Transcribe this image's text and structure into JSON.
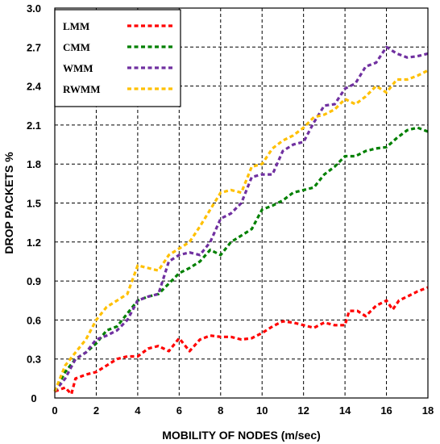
{
  "chart_data": {
    "type": "line",
    "xlabel": "MOBILITY OF NODES (m/sec)",
    "ylabel": "DROP PACKETS %",
    "xlim": [
      0,
      18
    ],
    "ylim": [
      0,
      3.0
    ],
    "x_ticks": [
      "0",
      "2",
      "4",
      "6",
      "8",
      "10",
      "12",
      "14",
      "16",
      "18"
    ],
    "y_ticks": [
      "0",
      "0.3",
      "0.6",
      "0.9",
      "1.2",
      "1.5",
      "1.8",
      "2.1",
      "2.4",
      "2.7",
      "3.0"
    ],
    "grid": true,
    "legend_position": "top-left",
    "series": [
      {
        "name": "LMM",
        "color": "#ff0000",
        "points": [
          [
            0,
            0.05
          ],
          [
            0.5,
            0.08
          ],
          [
            0.8,
            0.03
          ],
          [
            1,
            0.15
          ],
          [
            1.5,
            0.18
          ],
          [
            2,
            0.2
          ],
          [
            2.5,
            0.25
          ],
          [
            3,
            0.3
          ],
          [
            3.5,
            0.32
          ],
          [
            4,
            0.32
          ],
          [
            4.5,
            0.38
          ],
          [
            5,
            0.4
          ],
          [
            5.5,
            0.36
          ],
          [
            6,
            0.46
          ],
          [
            6.5,
            0.36
          ],
          [
            7,
            0.45
          ],
          [
            7.5,
            0.48
          ],
          [
            8,
            0.47
          ],
          [
            8.5,
            0.47
          ],
          [
            9,
            0.45
          ],
          [
            9.5,
            0.46
          ],
          [
            10,
            0.5
          ],
          [
            10.5,
            0.55
          ],
          [
            11,
            0.59
          ],
          [
            11.5,
            0.58
          ],
          [
            12,
            0.56
          ],
          [
            12.5,
            0.54
          ],
          [
            13,
            0.58
          ],
          [
            13.5,
            0.56
          ],
          [
            14,
            0.56
          ],
          [
            14.2,
            0.67
          ],
          [
            14.6,
            0.67
          ],
          [
            15,
            0.63
          ],
          [
            15.5,
            0.71
          ],
          [
            16,
            0.75
          ],
          [
            16.3,
            0.68
          ],
          [
            16.6,
            0.75
          ],
          [
            17,
            0.78
          ],
          [
            17.5,
            0.82
          ],
          [
            18,
            0.85
          ]
        ]
      },
      {
        "name": "CMM",
        "color": "#008000",
        "points": [
          [
            0,
            0.05
          ],
          [
            0.5,
            0.2
          ],
          [
            1,
            0.3
          ],
          [
            1.5,
            0.35
          ],
          [
            2,
            0.42
          ],
          [
            2.5,
            0.52
          ],
          [
            3,
            0.55
          ],
          [
            3.5,
            0.65
          ],
          [
            4,
            0.75
          ],
          [
            4.5,
            0.78
          ],
          [
            5,
            0.8
          ],
          [
            5.5,
            0.88
          ],
          [
            6,
            0.96
          ],
          [
            6.5,
            1.0
          ],
          [
            7,
            1.05
          ],
          [
            7.5,
            1.14
          ],
          [
            8,
            1.1
          ],
          [
            8.5,
            1.2
          ],
          [
            9,
            1.25
          ],
          [
            9.5,
            1.3
          ],
          [
            10,
            1.45
          ],
          [
            10.5,
            1.48
          ],
          [
            11,
            1.52
          ],
          [
            11.5,
            1.58
          ],
          [
            12,
            1.6
          ],
          [
            12.5,
            1.62
          ],
          [
            13,
            1.72
          ],
          [
            13.5,
            1.78
          ],
          [
            14,
            1.86
          ],
          [
            14.5,
            1.86
          ],
          [
            15,
            1.9
          ],
          [
            15.5,
            1.92
          ],
          [
            16,
            1.93
          ],
          [
            16.5,
            2.0
          ],
          [
            17,
            2.06
          ],
          [
            17.5,
            2.08
          ],
          [
            18,
            2.05
          ]
        ]
      },
      {
        "name": "WMM",
        "color": "#7030a0",
        "points": [
          [
            0,
            0.05
          ],
          [
            0.5,
            0.15
          ],
          [
            1,
            0.3
          ],
          [
            1.5,
            0.35
          ],
          [
            2,
            0.45
          ],
          [
            2.5,
            0.48
          ],
          [
            3,
            0.52
          ],
          [
            3.5,
            0.6
          ],
          [
            4,
            0.75
          ],
          [
            4.5,
            0.78
          ],
          [
            5,
            0.8
          ],
          [
            5.5,
            1.05
          ],
          [
            6,
            1.1
          ],
          [
            6.5,
            1.12
          ],
          [
            7,
            1.1
          ],
          [
            7.5,
            1.2
          ],
          [
            8,
            1.38
          ],
          [
            8.5,
            1.42
          ],
          [
            9,
            1.5
          ],
          [
            9.5,
            1.7
          ],
          [
            10,
            1.72
          ],
          [
            10.5,
            1.72
          ],
          [
            11,
            1.9
          ],
          [
            11.5,
            1.95
          ],
          [
            12,
            1.97
          ],
          [
            12.5,
            2.12
          ],
          [
            13,
            2.25
          ],
          [
            13.5,
            2.26
          ],
          [
            14,
            2.38
          ],
          [
            14.5,
            2.42
          ],
          [
            15,
            2.55
          ],
          [
            15.5,
            2.58
          ],
          [
            16,
            2.7
          ],
          [
            16.5,
            2.65
          ],
          [
            17,
            2.62
          ],
          [
            17.5,
            2.63
          ],
          [
            18,
            2.65
          ]
        ]
      },
      {
        "name": "RWMM",
        "color": "#ffc000",
        "points": [
          [
            0,
            0.05
          ],
          [
            0.5,
            0.25
          ],
          [
            1,
            0.35
          ],
          [
            1.5,
            0.45
          ],
          [
            2,
            0.6
          ],
          [
            2.5,
            0.7
          ],
          [
            3,
            0.75
          ],
          [
            3.5,
            0.8
          ],
          [
            4,
            1.02
          ],
          [
            4.5,
            1.0
          ],
          [
            5,
            0.98
          ],
          [
            5.5,
            1.1
          ],
          [
            6,
            1.15
          ],
          [
            6.5,
            1.2
          ],
          [
            7,
            1.32
          ],
          [
            7.5,
            1.45
          ],
          [
            8,
            1.58
          ],
          [
            8.5,
            1.6
          ],
          [
            9,
            1.58
          ],
          [
            9.5,
            1.78
          ],
          [
            10,
            1.8
          ],
          [
            10.5,
            1.92
          ],
          [
            11,
            1.98
          ],
          [
            11.5,
            2.02
          ],
          [
            12,
            2.08
          ],
          [
            12.5,
            2.16
          ],
          [
            13,
            2.18
          ],
          [
            13.5,
            2.22
          ],
          [
            14,
            2.3
          ],
          [
            14.5,
            2.26
          ],
          [
            15,
            2.32
          ],
          [
            15.5,
            2.4
          ],
          [
            16,
            2.35
          ],
          [
            16.5,
            2.45
          ],
          [
            17,
            2.45
          ],
          [
            17.5,
            2.48
          ],
          [
            18,
            2.52
          ]
        ]
      }
    ]
  }
}
